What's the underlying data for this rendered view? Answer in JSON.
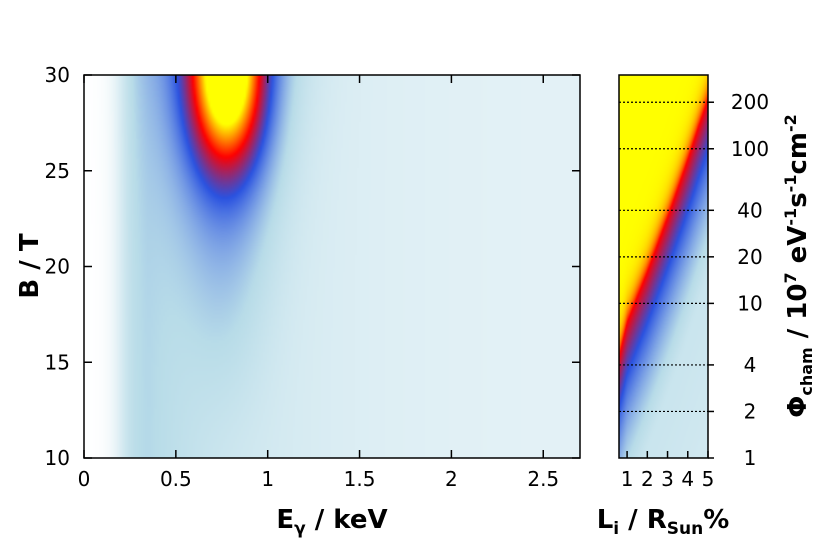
{
  "chart_data": [
    {
      "type": "heatmap",
      "xlabel": {
        "base": "E",
        "sub": "γ",
        "rest": " / keV"
      },
      "ylabel": "B / T",
      "xlim": [
        0,
        2.7
      ],
      "ylim": [
        10,
        30
      ],
      "x_ticks": [
        {
          "value": 0,
          "label": "0"
        },
        {
          "value": 0.5,
          "label": "0.5"
        },
        {
          "value": 1,
          "label": "1"
        },
        {
          "value": 1.5,
          "label": "1.5"
        },
        {
          "value": 2,
          "label": "2"
        },
        {
          "value": 2.5,
          "label": "2.5"
        }
      ],
      "y_ticks": [
        {
          "value": 10,
          "label": "10"
        },
        {
          "value": 15,
          "label": "15"
        },
        {
          "value": 20,
          "label": "20"
        },
        {
          "value": 25,
          "label": "25"
        },
        {
          "value": 30,
          "label": "30"
        }
      ],
      "colormap": [
        "#ffffff",
        "#b8dce8",
        "#2a52e0",
        "#ff0000",
        "#ffff00"
      ],
      "peak": {
        "x": 0.78,
        "y": 30
      }
    },
    {
      "type": "heatmap",
      "xlabel": {
        "base": "L",
        "sub": "i",
        "mid": " / R",
        "sub2": "Sun",
        "rest": "%"
      },
      "xlim": [
        0.6,
        5
      ],
      "x_ticks": [
        {
          "value": 1,
          "label": "1"
        },
        {
          "value": 2,
          "label": "2"
        },
        {
          "value": 3,
          "label": "3"
        },
        {
          "value": 4,
          "label": "4"
        },
        {
          "value": 5,
          "label": "5"
        }
      ],
      "y_scale": "log",
      "ylim": [
        1,
        300
      ],
      "colorbar_label": {
        "base": "Φ",
        "sub": "cham",
        "mid": " / 10",
        "sup1": "7",
        "mid2": " eV",
        "sup2": "-1",
        "mid3": "s",
        "sup3": "-1",
        "mid4": "cm",
        "sup4": "-2"
      },
      "y_ticks": [
        {
          "value": 1,
          "label": "1"
        },
        {
          "value": 2,
          "label": "2"
        },
        {
          "value": 4,
          "label": "4"
        },
        {
          "value": 10,
          "label": "10"
        },
        {
          "value": 20,
          "label": "20"
        },
        {
          "value": 40,
          "label": "40"
        },
        {
          "value": 100,
          "label": "100"
        },
        {
          "value": 200,
          "label": "200"
        }
      ],
      "dotted_gridlines": [
        2,
        4,
        10,
        20,
        40,
        100,
        200
      ],
      "band_curve": {
        "x": [
          0.6,
          1.0,
          1.5,
          2.0,
          2.5,
          3.0,
          3.5,
          4.0,
          4.5,
          5.0
        ],
        "y": [
          4.5,
          7.5,
          11,
          16,
          24,
          36,
          55,
          85,
          135,
          210
        ]
      },
      "colormap": [
        "#ffffff",
        "#b8dce8",
        "#2a52e0",
        "#ff0000",
        "#ffff00"
      ]
    }
  ]
}
